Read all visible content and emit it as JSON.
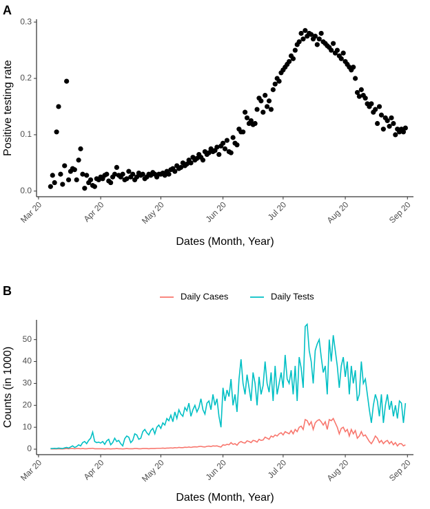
{
  "chart_data": [
    {
      "type": "scatter",
      "panel_label": "A",
      "xlabel": "Dates (Month, Year)",
      "ylabel": "Positive testing rate",
      "color": "#000000",
      "xlim": [
        -1,
        187
      ],
      "xticks": [
        {
          "value": 0,
          "label": "Mar 20"
        },
        {
          "value": 31,
          "label": "Apr 20"
        },
        {
          "value": 61,
          "label": "May 20"
        },
        {
          "value": 92,
          "label": "Jun 20"
        },
        {
          "value": 122,
          "label": "Jul 20"
        },
        {
          "value": 153,
          "label": "Aug 20"
        },
        {
          "value": 184,
          "label": "Sep 20"
        }
      ],
      "ylim": [
        -0.01,
        0.305
      ],
      "yticks": [
        {
          "value": 0,
          "label": "0.0"
        },
        0.1,
        0.2,
        0.3
      ],
      "x": [
        6,
        7,
        8,
        9,
        10,
        11,
        12,
        13,
        14,
        15,
        16,
        17,
        18,
        19,
        20,
        21,
        22,
        23,
        24,
        25,
        26,
        27,
        28,
        29,
        30,
        31,
        32,
        33,
        34,
        35,
        36,
        37,
        38,
        39,
        40,
        41,
        42,
        43,
        44,
        45,
        46,
        47,
        48,
        49,
        50,
        51,
        52,
        53,
        54,
        55,
        56,
        57,
        58,
        59,
        60,
        61,
        62,
        63,
        64,
        65,
        66,
        67,
        68,
        69,
        70,
        71,
        72,
        73,
        74,
        75,
        76,
        77,
        78,
        79,
        80,
        81,
        82,
        83,
        84,
        85,
        86,
        87,
        88,
        89,
        90,
        91,
        92,
        93,
        94,
        95,
        96,
        97,
        98,
        99,
        100,
        101,
        102,
        103,
        104,
        105,
        106,
        107,
        108,
        109,
        110,
        111,
        112,
        113,
        114,
        115,
        116,
        117,
        118,
        119,
        120,
        121,
        122,
        123,
        124,
        125,
        126,
        127,
        128,
        129,
        130,
        131,
        132,
        133,
        134,
        135,
        136,
        137,
        138,
        139,
        140,
        141,
        142,
        143,
        144,
        145,
        146,
        147,
        148,
        149,
        150,
        151,
        152,
        153,
        154,
        155,
        156,
        157,
        158,
        159,
        160,
        161,
        162,
        163,
        164,
        165,
        166,
        167,
        168,
        169,
        170,
        171,
        172,
        173,
        174,
        175,
        176,
        177,
        178,
        179,
        180,
        181,
        182,
        183
      ],
      "values": [
        0.008,
        0.028,
        0.015,
        0.105,
        0.15,
        0.03,
        0.012,
        0.045,
        0.195,
        0.02,
        0.035,
        0.04,
        0.038,
        0.02,
        0.055,
        0.075,
        0.03,
        0.005,
        0.028,
        0.015,
        0.02,
        0.01,
        0.008,
        0.022,
        0.02,
        0.025,
        0.022,
        0.028,
        0.03,
        0.018,
        0.015,
        0.025,
        0.03,
        0.042,
        0.028,
        0.025,
        0.03,
        0.02,
        0.022,
        0.035,
        0.025,
        0.03,
        0.02,
        0.025,
        0.032,
        0.028,
        0.03,
        0.022,
        0.025,
        0.03,
        0.028,
        0.033,
        0.03,
        0.025,
        0.03,
        0.03,
        0.032,
        0.028,
        0.035,
        0.03,
        0.038,
        0.04,
        0.035,
        0.045,
        0.04,
        0.042,
        0.05,
        0.045,
        0.048,
        0.055,
        0.05,
        0.06,
        0.055,
        0.058,
        0.065,
        0.06,
        0.055,
        0.07,
        0.065,
        0.068,
        0.075,
        0.07,
        0.072,
        0.078,
        0.065,
        0.08,
        0.085,
        0.075,
        0.09,
        0.07,
        0.068,
        0.095,
        0.085,
        0.082,
        0.11,
        0.105,
        0.105,
        0.14,
        0.13,
        0.12,
        0.125,
        0.118,
        0.12,
        0.145,
        0.165,
        0.16,
        0.14,
        0.17,
        0.15,
        0.16,
        0.145,
        0.18,
        0.19,
        0.2,
        0.195,
        0.21,
        0.215,
        0.22,
        0.225,
        0.23,
        0.24,
        0.235,
        0.25,
        0.26,
        0.265,
        0.28,
        0.27,
        0.285,
        0.275,
        0.28,
        0.278,
        0.27,
        0.275,
        0.26,
        0.27,
        0.28,
        0.265,
        0.262,
        0.258,
        0.255,
        0.25,
        0.262,
        0.245,
        0.25,
        0.24,
        0.235,
        0.245,
        0.23,
        0.225,
        0.22,
        0.215,
        0.22,
        0.2,
        0.175,
        0.168,
        0.18,
        0.17,
        0.165,
        0.155,
        0.15,
        0.155,
        0.14,
        0.145,
        0.12,
        0.15,
        0.135,
        0.11,
        0.13,
        0.125,
        0.115,
        0.13,
        0.12,
        0.1,
        0.11,
        0.105,
        0.11,
        0.105,
        0.112
      ]
    },
    {
      "type": "line",
      "panel_label": "B",
      "xlabel": "Dates (Month, Year)",
      "ylabel": "Counts (in 1000)",
      "legend": "top",
      "xlim": [
        -1,
        187
      ],
      "xticks": [
        {
          "value": 0,
          "label": "Mar 20"
        },
        {
          "value": 31,
          "label": "Apr 20"
        },
        {
          "value": 61,
          "label": "May 20"
        },
        {
          "value": 92,
          "label": "Jun 20"
        },
        {
          "value": 122,
          "label": "Jul 20"
        },
        {
          "value": 153,
          "label": "Aug 20"
        },
        {
          "value": 184,
          "label": "Sep 20"
        }
      ],
      "ylim": [
        -2.5,
        59
      ],
      "yticks": [
        0,
        10,
        20,
        30,
        40,
        50
      ],
      "x": [
        6,
        7,
        8,
        9,
        10,
        11,
        12,
        13,
        14,
        15,
        16,
        17,
        18,
        19,
        20,
        21,
        22,
        23,
        24,
        25,
        26,
        27,
        28,
        29,
        30,
        31,
        32,
        33,
        34,
        35,
        36,
        37,
        38,
        39,
        40,
        41,
        42,
        43,
        44,
        45,
        46,
        47,
        48,
        49,
        50,
        51,
        52,
        53,
        54,
        55,
        56,
        57,
        58,
        59,
        60,
        61,
        62,
        63,
        64,
        65,
        66,
        67,
        68,
        69,
        70,
        71,
        72,
        73,
        74,
        75,
        76,
        77,
        78,
        79,
        80,
        81,
        82,
        83,
        84,
        85,
        86,
        87,
        88,
        89,
        90,
        91,
        92,
        93,
        94,
        95,
        96,
        97,
        98,
        99,
        100,
        101,
        102,
        103,
        104,
        105,
        106,
        107,
        108,
        109,
        110,
        111,
        112,
        113,
        114,
        115,
        116,
        117,
        118,
        119,
        120,
        121,
        122,
        123,
        124,
        125,
        126,
        127,
        128,
        129,
        130,
        131,
        132,
        133,
        134,
        135,
        136,
        137,
        138,
        139,
        140,
        141,
        142,
        143,
        144,
        145,
        146,
        147,
        148,
        149,
        150,
        151,
        152,
        153,
        154,
        155,
        156,
        157,
        158,
        159,
        160,
        161,
        162,
        163,
        164,
        165,
        166,
        167,
        168,
        169,
        170,
        171,
        172,
        173,
        174,
        175,
        176,
        177,
        178,
        179,
        180,
        181,
        182,
        183
      ],
      "series": [
        {
          "name": "Daily Cases",
          "color": "#F8766D",
          "values": [
            0.1,
            0.1,
            0.1,
            0.1,
            0.2,
            0.1,
            0.1,
            0.2,
            0.3,
            0.2,
            0.3,
            0.3,
            0.2,
            0.3,
            0.3,
            0.2,
            0.3,
            0.2,
            0.2,
            0.3,
            0.3,
            0.4,
            0.2,
            0.2,
            0.2,
            0.2,
            0.2,
            0.1,
            0.2,
            0.2,
            0.1,
            0.2,
            0.2,
            0.3,
            0.2,
            0.2,
            0.1,
            0.2,
            0.3,
            0.2,
            0.2,
            0.2,
            0.3,
            0.3,
            0.2,
            0.2,
            0.3,
            0.3,
            0.3,
            0.2,
            0.3,
            0.3,
            0.3,
            0.4,
            0.4,
            0.4,
            0.5,
            0.4,
            0.5,
            0.5,
            0.6,
            0.5,
            0.7,
            0.6,
            0.8,
            0.7,
            0.7,
            0.9,
            0.8,
            1.0,
            0.8,
            1.0,
            1.1,
            1.0,
            1.2,
            1.3,
            1.1,
            1.0,
            1.3,
            1.4,
            1.2,
            1.5,
            1.4,
            1.5,
            1.2,
            1.0,
            2.0,
            1.8,
            2.2,
            2.0,
            3.0,
            2.2,
            2.5,
            1.8,
            3.0,
            3.5,
            3.0,
            2.8,
            3.8,
            3.5,
            3.0,
            4.0,
            3.8,
            3.2,
            4.5,
            4.0,
            4.2,
            5.5,
            5.0,
            4.5,
            6.0,
            5.5,
            6.5,
            6.0,
            7.0,
            7.5,
            6.5,
            8.0,
            7.5,
            7.0,
            8.5,
            7.0,
            9.0,
            8.0,
            10.0,
            10.5,
            9.0,
            13.5,
            13.0,
            11.0,
            12.5,
            9.0,
            12.0,
            13.0,
            13.5,
            12.5,
            11.0,
            12.5,
            9.0,
            13.5,
            13.0,
            14.0,
            12.0,
            10.0,
            7.0,
            9.5,
            10.0,
            8.0,
            9.0,
            6.0,
            9.0,
            7.0,
            8.5,
            5.0,
            6.0,
            8.0,
            6.0,
            6.5,
            5.0,
            3.5,
            2.5,
            4.0,
            6.0,
            5.0,
            3.0,
            4.0,
            2.5,
            3.5,
            4.0,
            2.5,
            3.5,
            2.0,
            3.0,
            1.5,
            2.5,
            2.5,
            1.5,
            2.0
          ]
        },
        {
          "name": "Daily Tests",
          "color": "#00BFC4",
          "values": [
            0.3,
            0.3,
            0.4,
            0.3,
            0.5,
            0.4,
            0.3,
            0.6,
            0.8,
            0.5,
            1.0,
            1.5,
            0.8,
            1.2,
            2.0,
            1.5,
            3.0,
            3.5,
            2.5,
            4.0,
            5.0,
            7.8,
            3.5,
            3.0,
            3.2,
            2.8,
            3.5,
            2.2,
            3.8,
            4.5,
            2.0,
            3.0,
            5.0,
            3.5,
            4.0,
            2.5,
            1.5,
            4.8,
            6.0,
            5.5,
            3.0,
            4.0,
            7.0,
            6.5,
            4.5,
            5.0,
            8.0,
            9.0,
            7.5,
            6.5,
            8.5,
            9.5,
            7.0,
            10.0,
            11.0,
            9.5,
            12.0,
            11.0,
            14.0,
            13.0,
            15.5,
            12.5,
            17.0,
            14.0,
            18.0,
            16.0,
            15.0,
            19.0,
            17.5,
            21.0,
            15.0,
            18.0,
            20.0,
            17.0,
            19.0,
            23.0,
            18.0,
            16.0,
            21.0,
            22.0,
            18.0,
            25.0,
            20.0,
            23.0,
            15.0,
            10.0,
            28.0,
            22.0,
            27.0,
            24.0,
            32.0,
            20.0,
            25.0,
            17.0,
            32.0,
            41.0,
            30.0,
            25.0,
            34.0,
            28.0,
            22.0,
            35.0,
            30.0,
            20.0,
            33.0,
            25.0,
            29.0,
            40.0,
            30.0,
            26.0,
            35.0,
            22.0,
            38.0,
            25.0,
            30.0,
            35.0,
            28.0,
            43.0,
            32.0,
            30.0,
            36.0,
            25.0,
            38.0,
            22.0,
            42.0,
            37.0,
            28.0,
            56.0,
            57.0,
            45.0,
            40.0,
            30.0,
            45.0,
            48.0,
            50.0,
            42.0,
            35.0,
            38.0,
            25.0,
            50.0,
            40.0,
            52.0,
            45.0,
            38.0,
            28.0,
            38.0,
            42.0,
            33.0,
            40.0,
            25.0,
            38.0,
            30.0,
            36.0,
            22.0,
            25.0,
            40.0,
            30.0,
            32.0,
            25.0,
            18.0,
            12.0,
            20.0,
            25.0,
            22.0,
            15.0,
            25.0,
            12.0,
            20.0,
            25.0,
            18.0,
            22.0,
            15.0,
            20.0,
            14.0,
            22.0,
            21.0,
            12.0,
            21.0
          ]
        }
      ]
    }
  ]
}
